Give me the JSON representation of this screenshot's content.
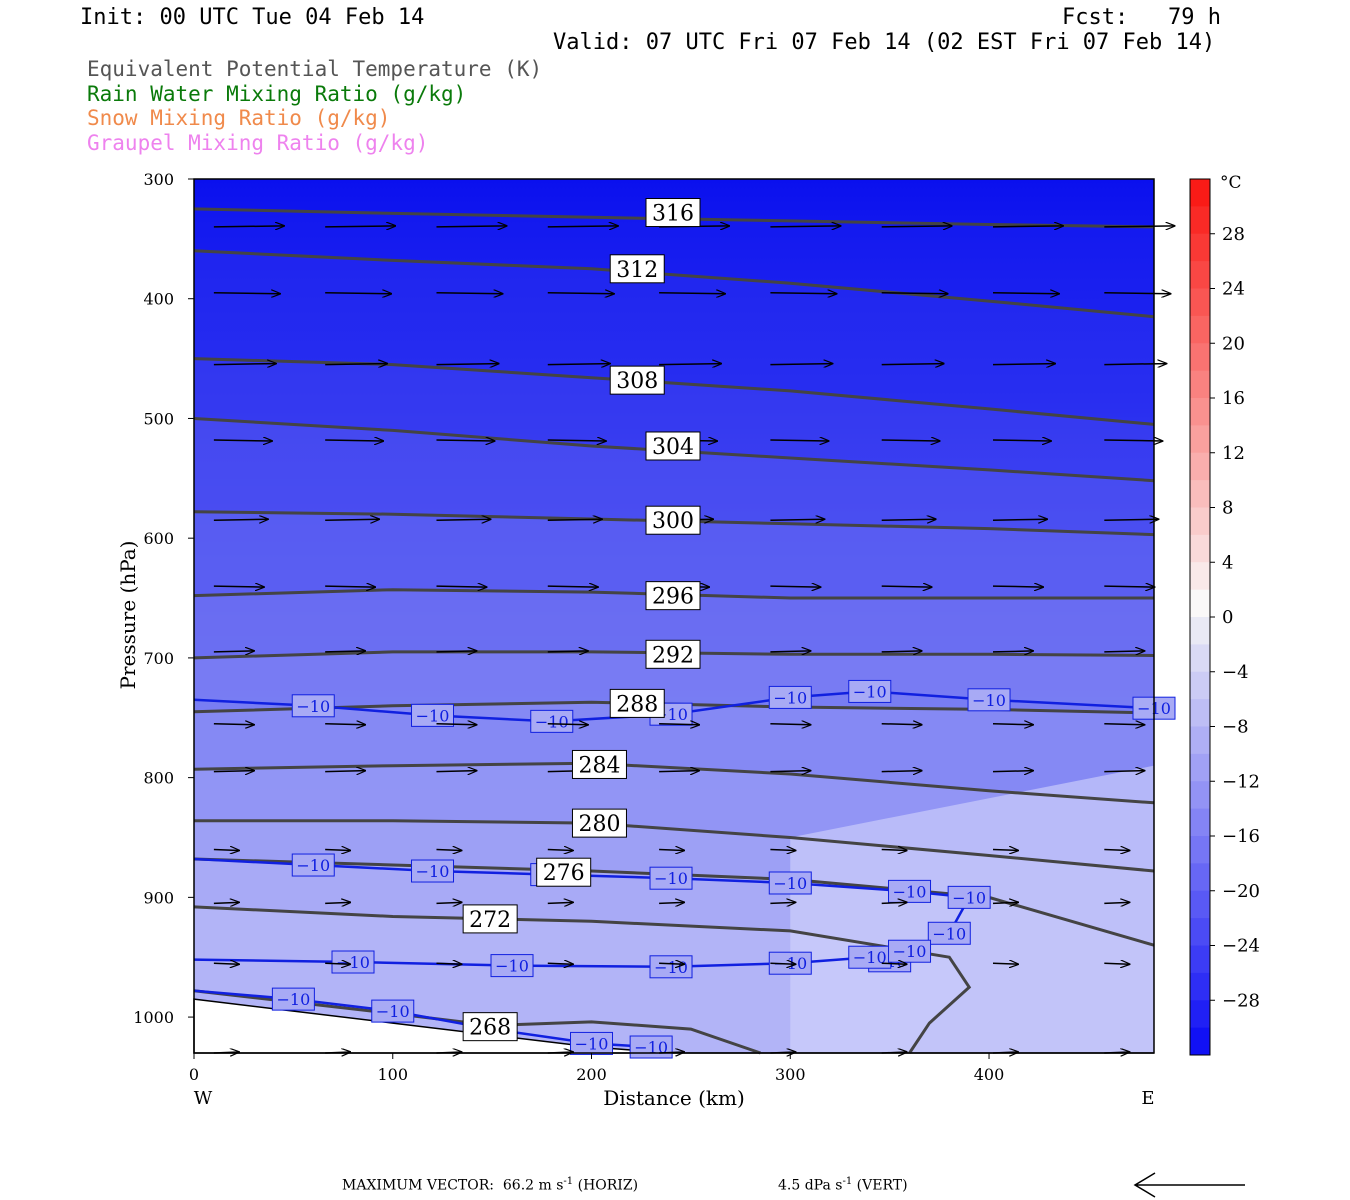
{
  "header": {
    "init": "Init: 00 UTC Tue 04 Feb 14",
    "fcst": "Fcst:   79 h",
    "valid": "Valid: 07 UTC Fri 07 Feb 14 (02 EST Fri 07 Feb 14)"
  },
  "legend": [
    {
      "label": "Equivalent Potential Temperature (K)",
      "color": "#555555"
    },
    {
      "label": "Rain Water Mixing Ratio (g/kg)",
      "color": "#0a7a0a"
    },
    {
      "label": "Snow Mixing Ratio (g/kg)",
      "color": "#f08a4b"
    },
    {
      "label": "Graupel Mixing Ratio (g/kg)",
      "color": "#ee82ee"
    }
  ],
  "footer": {
    "max_vector": "MAXIMUM VECTOR:  66.2 m s",
    "horiz_unit": " (HORIZ)",
    "vert": "4.5 dPa s",
    "vert_unit": " (VERT)",
    "exp": "-1"
  },
  "chart_data": {
    "type": "heatmap",
    "xlabel": "Distance (km)",
    "ylabel": "Pressure (hPa)",
    "xlim": [
      0,
      483
    ],
    "ylim": [
      1030,
      300
    ],
    "x_ticks": [
      0,
      100,
      200,
      300,
      400
    ],
    "y_ticks": [
      300,
      400,
      500,
      600,
      700,
      800,
      900,
      1000
    ],
    "x_end_labels": {
      "left": "W",
      "right": "E"
    },
    "colorbar": {
      "unit": "°C",
      "ticks": [
        28,
        24,
        20,
        16,
        12,
        8,
        4,
        0,
        -4,
        -8,
        -12,
        -16,
        -20,
        -24,
        -28
      ],
      "min": -32,
      "max": 32
    },
    "theta_e_contours": [
      {
        "level": 316,
        "label_at": [
          241,
          328
        ],
        "points": [
          [
            0,
            325
          ],
          [
            80,
            328
          ],
          [
            200,
            332
          ],
          [
            300,
            335
          ],
          [
            400,
            338
          ],
          [
            483,
            340
          ]
        ]
      },
      {
        "level": 312,
        "label_at": [
          223,
          375
        ],
        "points": [
          [
            0,
            360
          ],
          [
            100,
            368
          ],
          [
            200,
            375
          ],
          [
            300,
            387
          ],
          [
            400,
            402
          ],
          [
            483,
            415
          ]
        ]
      },
      {
        "level": 308,
        "label_at": [
          223,
          468
        ],
        "points": [
          [
            0,
            450
          ],
          [
            100,
            455
          ],
          [
            200,
            466
          ],
          [
            300,
            477
          ],
          [
            400,
            492
          ],
          [
            483,
            505
          ]
        ]
      },
      {
        "level": 304,
        "label_at": [
          241,
          523
        ],
        "points": [
          [
            0,
            500
          ],
          [
            100,
            510
          ],
          [
            200,
            523
          ],
          [
            300,
            533
          ],
          [
            400,
            543
          ],
          [
            483,
            552
          ]
        ]
      },
      {
        "level": 300,
        "label_at": [
          241,
          585
        ],
        "points": [
          [
            0,
            578
          ],
          [
            100,
            580
          ],
          [
            200,
            584
          ],
          [
            300,
            588
          ],
          [
            400,
            592
          ],
          [
            483,
            597
          ]
        ]
      },
      {
        "level": 296,
        "label_at": [
          241,
          648
        ],
        "points": [
          [
            0,
            648
          ],
          [
            100,
            643
          ],
          [
            200,
            645
          ],
          [
            300,
            650
          ],
          [
            400,
            650
          ],
          [
            483,
            650
          ]
        ]
      },
      {
        "level": 292,
        "label_at": [
          241,
          697
        ],
        "points": [
          [
            0,
            700
          ],
          [
            100,
            695
          ],
          [
            200,
            695
          ],
          [
            300,
            697
          ],
          [
            400,
            697
          ],
          [
            483,
            698
          ]
        ]
      },
      {
        "level": 288,
        "label_at": [
          223,
          738
        ],
        "points": [
          [
            0,
            745
          ],
          [
            100,
            740
          ],
          [
            200,
            737
          ],
          [
            300,
            741
          ],
          [
            400,
            743
          ],
          [
            483,
            746
          ]
        ]
      },
      {
        "level": 284,
        "label_at": [
          204,
          789
        ],
        "points": [
          [
            0,
            793
          ],
          [
            100,
            790
          ],
          [
            200,
            788
          ],
          [
            300,
            797
          ],
          [
            400,
            811
          ],
          [
            483,
            821
          ]
        ]
      },
      {
        "level": 280,
        "label_at": [
          204,
          838
        ],
        "points": [
          [
            0,
            836
          ],
          [
            100,
            836
          ],
          [
            200,
            838
          ],
          [
            300,
            850
          ],
          [
            400,
            865
          ],
          [
            483,
            878
          ]
        ]
      },
      {
        "level": 276,
        "label_at": [
          186,
          879
        ],
        "points": [
          [
            0,
            868
          ],
          [
            100,
            873
          ],
          [
            200,
            878
          ],
          [
            300,
            885
          ],
          [
            400,
            900
          ],
          [
            483,
            940
          ]
        ]
      },
      {
        "level": 272,
        "label_at": [
          149,
          918
        ],
        "points": [
          [
            0,
            908
          ],
          [
            100,
            916
          ],
          [
            200,
            920
          ],
          [
            300,
            928
          ],
          [
            380,
            950
          ],
          [
            390,
            975
          ],
          [
            370,
            1005
          ],
          [
            360,
            1030
          ]
        ]
      },
      {
        "level": 268,
        "label_at": [
          149,
          1008
        ],
        "points": [
          [
            0,
            978
          ],
          [
            100,
            997
          ],
          [
            150,
            1007
          ],
          [
            200,
            1004
          ],
          [
            250,
            1010
          ],
          [
            285,
            1030
          ]
        ]
      }
    ],
    "isotherm_minus10": [
      {
        "label": "−10",
        "points": [
          [
            0,
            735
          ],
          [
            60,
            740
          ],
          [
            120,
            748
          ],
          [
            180,
            753
          ],
          [
            240,
            747
          ],
          [
            300,
            733
          ],
          [
            340,
            728
          ],
          [
            400,
            735
          ],
          [
            483,
            742
          ]
        ]
      },
      {
        "label": "−10",
        "points": [
          [
            0,
            868
          ],
          [
            60,
            873
          ],
          [
            120,
            878
          ],
          [
            180,
            881
          ],
          [
            240,
            884
          ],
          [
            300,
            888
          ],
          [
            360,
            895
          ],
          [
            390,
            900
          ],
          [
            380,
            930
          ],
          [
            350,
            953
          ]
        ]
      },
      {
        "label": "−10",
        "points": [
          [
            0,
            952
          ],
          [
            80,
            954
          ],
          [
            160,
            957
          ],
          [
            240,
            958
          ],
          [
            300,
            955
          ],
          [
            340,
            950
          ],
          [
            360,
            945
          ]
        ]
      },
      {
        "label": "−10",
        "points": [
          [
            0,
            978
          ],
          [
            50,
            985
          ],
          [
            100,
            995
          ],
          [
            150,
            1010
          ],
          [
            200,
            1022
          ],
          [
            230,
            1025
          ]
        ]
      }
    ],
    "wind_vector_rows_hPa": [
      340,
      395,
      455,
      518,
      585,
      640,
      695,
      755,
      795,
      860,
      905,
      955,
      1030
    ]
  }
}
